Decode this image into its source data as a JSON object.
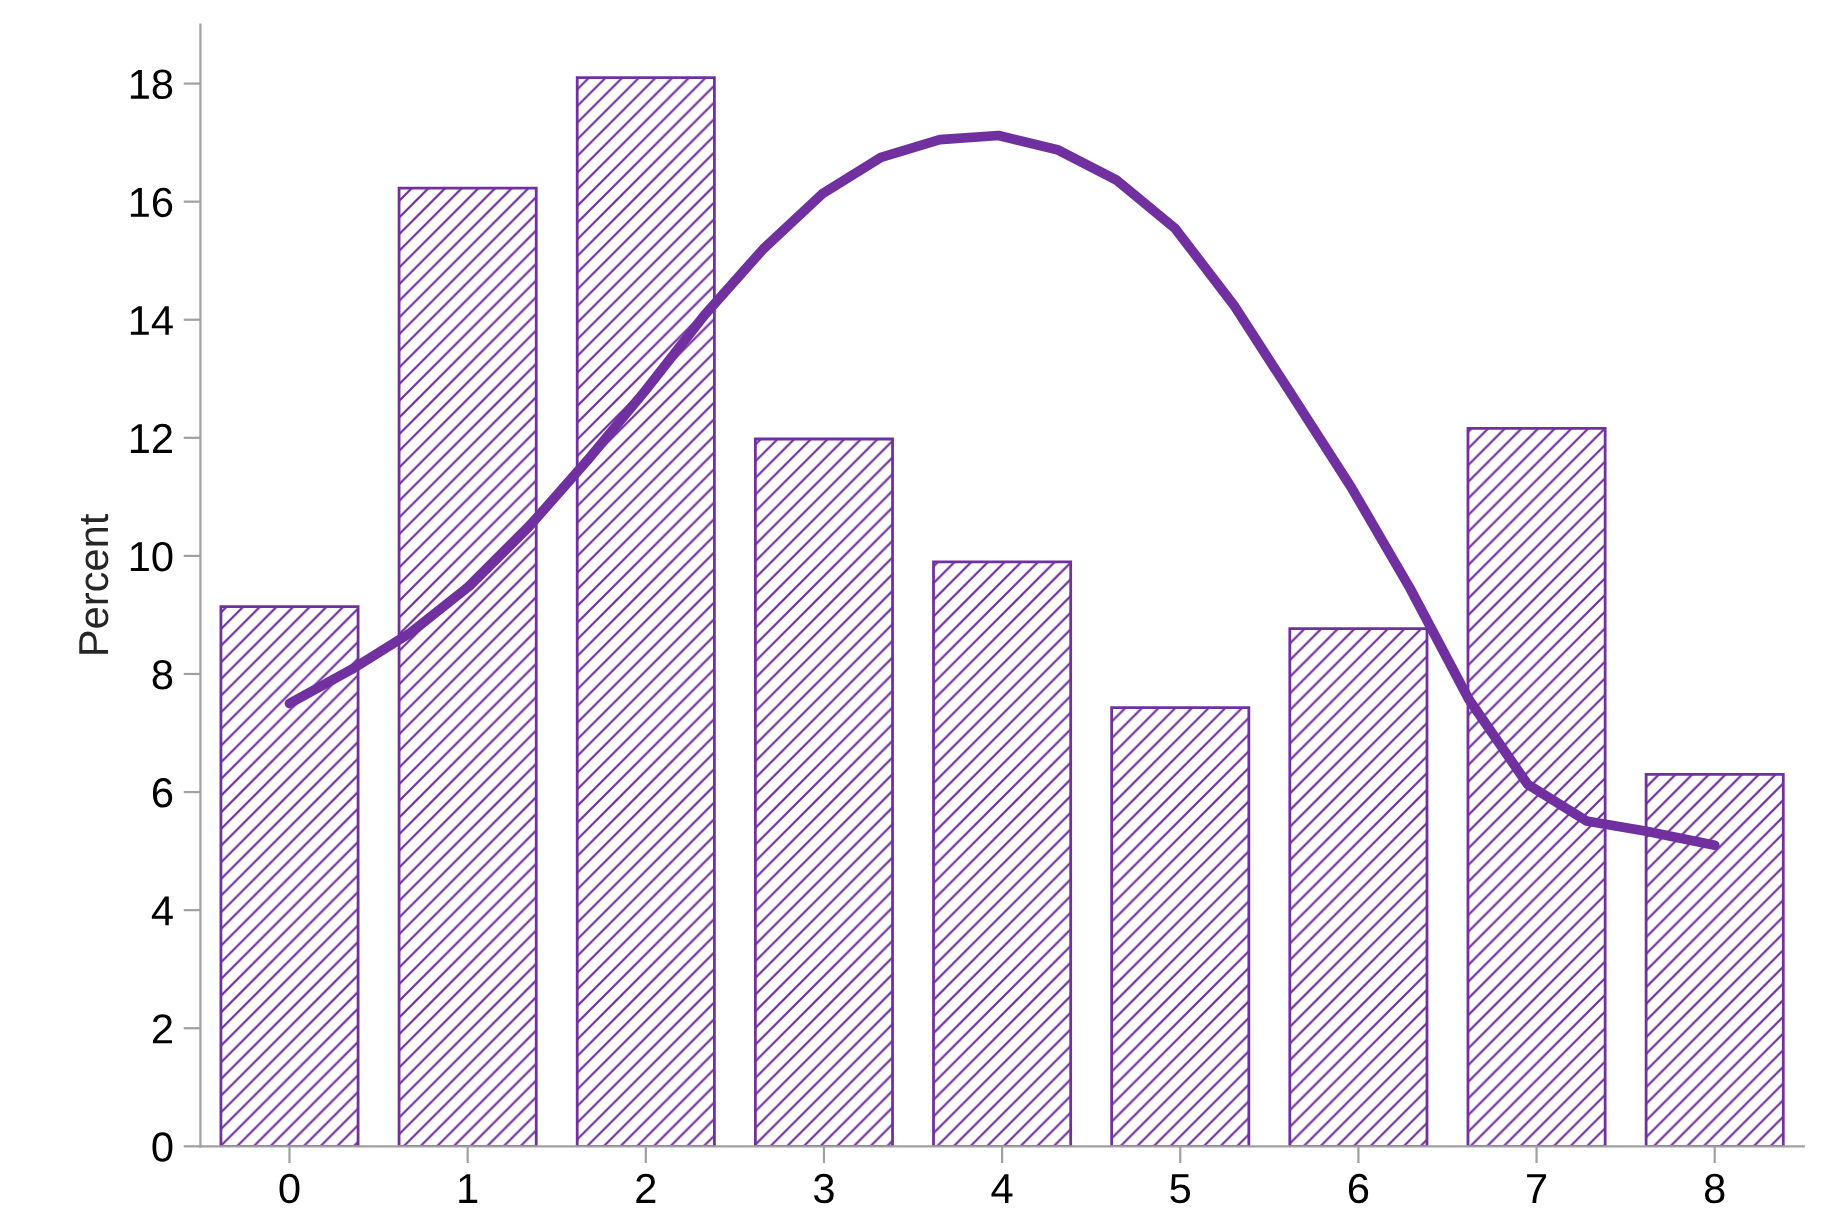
{
  "chart_data": {
    "type": "bar",
    "ylabel": "Percent",
    "x": [
      0,
      1,
      2,
      3,
      4,
      5,
      6,
      7,
      8
    ],
    "series": [
      {
        "color": "#7030a0",
        "values": [
          9.14,
          16.23,
          18.1,
          11.98,
          9.9,
          7.43,
          8.77,
          12.16,
          6.3
        ]
      },
      {
        "type": "line",
        "color": "#7030a0",
        "x": [
          0,
          0.35,
          0.68,
          1.01,
          1.34,
          1.67,
          2.0,
          2.33,
          2.66,
          2.99,
          3.32,
          3.65,
          3.98,
          4.31,
          4.64,
          4.97,
          5.3,
          5.63,
          5.96,
          6.29,
          6.62,
          6.95,
          7.28,
          7.61,
          8.0
        ],
        "values": [
          7.5,
          8.08,
          8.7,
          9.49,
          10.48,
          11.61,
          12.81,
          14.08,
          15.2,
          16.13,
          16.75,
          17.05,
          17.12,
          16.88,
          16.37,
          15.55,
          14.25,
          12.71,
          11.16,
          9.45,
          7.57,
          6.13,
          5.51,
          5.34,
          5.1
        ]
      }
    ],
    "xlim": [
      -0.5,
      8.5
    ],
    "xticks": [
      0,
      1,
      2,
      3,
      4,
      5,
      6,
      7,
      8
    ],
    "ylim": [
      0,
      19
    ],
    "yticks": [
      0,
      2,
      4,
      6,
      8,
      10,
      12,
      14,
      16,
      18
    ]
  }
}
